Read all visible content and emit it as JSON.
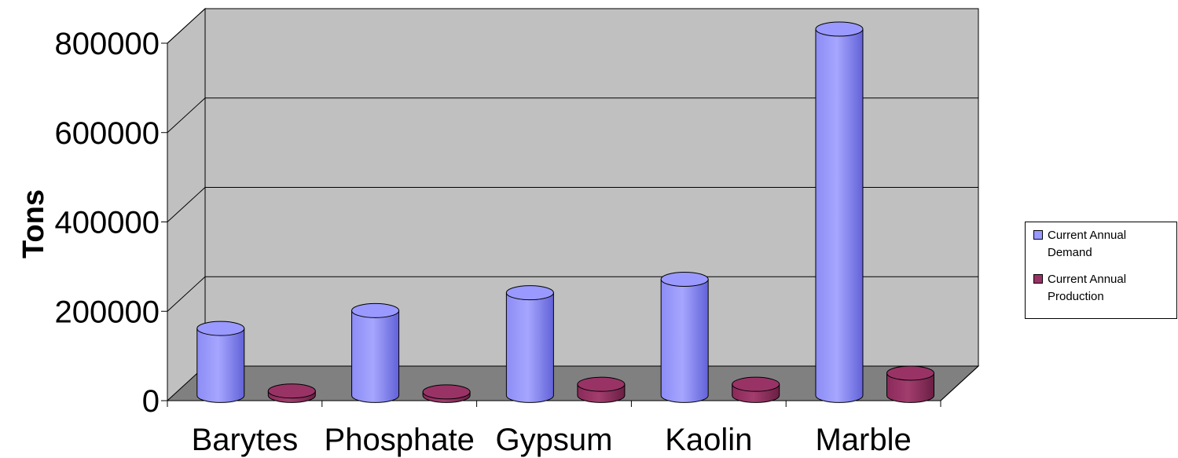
{
  "chart_data": {
    "type": "bar",
    "categories": [
      "Barytes",
      "Phosphate",
      "Gypsum",
      "Kaolin",
      "Marble"
    ],
    "series": [
      {
        "name": "Current Annual Demand",
        "values": [
          150000,
          190000,
          230000,
          260000,
          820000
        ]
      },
      {
        "name": "Current Annual Production",
        "values": [
          10000,
          8000,
          25000,
          25000,
          50000
        ]
      }
    ],
    "title": "",
    "xlabel": "",
    "ylabel": "Tons",
    "ylim": [
      0,
      800000
    ],
    "yticks": [
      "0",
      "200000",
      "400000",
      "600000",
      "800000"
    ],
    "grid": true,
    "legend_position": "right",
    "style": "3d-cylinder",
    "colors": {
      "demand": "#9999ff",
      "demand_dark": "#5a5ad0",
      "production": "#993366",
      "production_dark": "#5c1c3c",
      "wall": "#c0c0c0",
      "floor": "#808080"
    }
  },
  "legend": {
    "items": [
      {
        "label": "Current Annual Demand",
        "color": "#9999ff"
      },
      {
        "label": "Current Annual Production",
        "color": "#993366"
      }
    ]
  }
}
